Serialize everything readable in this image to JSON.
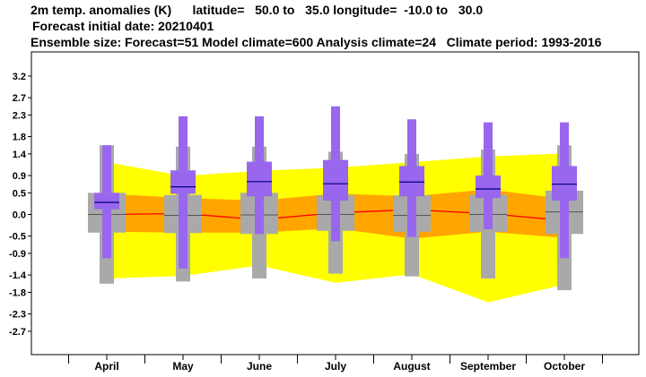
{
  "header": {
    "line1": "2m temp. anomalies (K)      latitude=   50.0 to   35.0 longitude=  -10.0 to   30.0",
    "line2": "Forecast initial date: 20210401",
    "line3": "Ensemble size: Forecast=51 Model climate=600 Analysis climate=24   Climate period: 1993-2016"
  },
  "colors": {
    "outer_band": "#ffff00",
    "inner_band": "#ffa500",
    "climate_box": "#a9a9a9",
    "forecast_box": "#9966ee",
    "median_line": "#ff0000"
  },
  "chart_data": {
    "type": "box",
    "categories": [
      "April",
      "May",
      "June",
      "July",
      "August",
      "September",
      "October"
    ],
    "y_ticks": [
      "3.2",
      "2.7",
      "2.3",
      "1.8",
      "1.4",
      "0.9",
      "0.5",
      "0.0",
      "-0.5",
      "-0.9",
      "-1.4",
      "-1.8",
      "-2.3",
      "-2.7"
    ],
    "ylim": [
      -3.2,
      3.4
    ],
    "model_climate_median": [
      0.0,
      0.02,
      -0.12,
      0.04,
      0.11,
      0.02,
      -0.14
    ],
    "model_climate_band_outer": {
      "upper": [
        1.21,
        0.89,
        1.01,
        1.08,
        1.21,
        1.34,
        1.41
      ],
      "lower": [
        -1.48,
        -1.42,
        -1.18,
        -1.58,
        -1.38,
        -2.03,
        -1.62
      ]
    },
    "model_climate_band_inner": {
      "upper": [
        0.48,
        0.38,
        0.32,
        0.48,
        0.42,
        0.58,
        0.36
      ],
      "lower": [
        -0.4,
        -0.42,
        -0.42,
        -0.32,
        -0.56,
        -0.4,
        -0.54
      ]
    },
    "analysis_climate": {
      "whisker_low": [
        -1.6,
        -1.55,
        -1.48,
        -1.37,
        -1.43,
        -1.48,
        -1.75
      ],
      "q10_low": [
        -0.45,
        -0.45,
        -0.45,
        -0.4,
        -0.4,
        -0.43,
        -0.45
      ],
      "q25": [
        -0.42,
        -0.43,
        -0.45,
        -0.38,
        -0.4,
        -0.4,
        -0.45
      ],
      "median": [
        0.0,
        -0.02,
        -0.01,
        0.0,
        -0.02,
        0.0,
        0.06
      ],
      "q75": [
        0.5,
        0.45,
        0.5,
        0.44,
        0.44,
        0.45,
        0.55
      ],
      "q90_high": [
        0.5,
        0.45,
        0.5,
        0.44,
        0.44,
        0.45,
        0.55
      ],
      "whisker_high": [
        1.6,
        1.57,
        1.57,
        1.45,
        1.4,
        1.5,
        1.6
      ]
    },
    "forecast": {
      "min": [
        -1.01,
        -1.25,
        -0.45,
        -0.62,
        -0.52,
        -0.34,
        -1.01
      ],
      "q10": [
        -0.25,
        0.2,
        -0.45,
        -0.62,
        -0.52,
        -0.34,
        -1.01
      ],
      "q25": [
        0.12,
        0.48,
        0.42,
        0.32,
        0.42,
        0.38,
        0.32
      ],
      "median": [
        0.28,
        0.64,
        0.76,
        0.71,
        0.75,
        0.59,
        0.7
      ],
      "q75": [
        0.5,
        1.02,
        1.22,
        1.26,
        1.12,
        0.9,
        1.12
      ],
      "q90": [
        0.5,
        1.02,
        1.22,
        1.26,
        1.12,
        0.9,
        1.12
      ],
      "max": [
        1.6,
        2.27,
        2.27,
        2.5,
        2.2,
        2.13,
        2.13
      ]
    }
  }
}
